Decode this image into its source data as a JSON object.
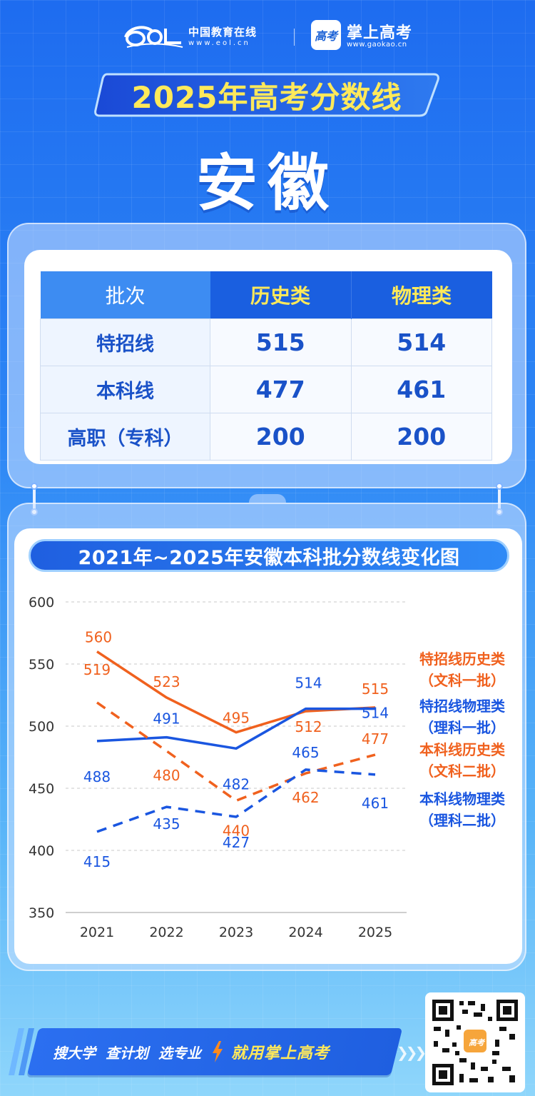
{
  "header": {
    "eol_name": "中国教育在线",
    "eol_url": "www.eol.cn",
    "gaokao_badge": "高考",
    "gaokao_name": "掌上高考",
    "gaokao_url": "www.gaokao.cn"
  },
  "title": "2025年高考分数线",
  "province": "安徽",
  "table": {
    "headers": [
      "批次",
      "历史类",
      "物理类"
    ],
    "rows": [
      {
        "batch": "特招线",
        "history": "515",
        "physics": "514"
      },
      {
        "batch": "本科线",
        "history": "477",
        "physics": "461"
      },
      {
        "batch": "高职（专科）",
        "history": "200",
        "physics": "200"
      }
    ]
  },
  "colors": {
    "orange": "#f0611e",
    "blue": "#1a56e0",
    "yellow": "#ffe95a"
  },
  "chart_data": {
    "type": "line",
    "title": "2021年~2025年安徽本科批分数线变化图",
    "x": [
      "2021",
      "2022",
      "2023",
      "2024",
      "2025"
    ],
    "yticks": [
      "600",
      "550",
      "500",
      "450",
      "400",
      "350"
    ],
    "ylim": [
      350,
      600
    ],
    "grid": true,
    "legend_position": "right",
    "series": [
      {
        "name_line1": "特招线历史类",
        "name_line2": "（文科一批）",
        "values": [
          560,
          523,
          495,
          512,
          515
        ],
        "labels": [
          "560",
          "523",
          "495",
          "512",
          "515"
        ],
        "color": "#f0611e",
        "style": "solid"
      },
      {
        "name_line1": "特招线物理类",
        "name_line2": "（理科一批）",
        "values": [
          488,
          491,
          482,
          514,
          514
        ],
        "labels": [
          "488",
          "491",
          "482",
          "514",
          "514"
        ],
        "color": "#1a56e0",
        "style": "solid"
      },
      {
        "name_line1": "本科线历史类",
        "name_line2": "（文科二批）",
        "values": [
          519,
          480,
          440,
          462,
          477
        ],
        "labels": [
          "519",
          "480",
          "440",
          "462",
          "477"
        ],
        "color": "#f0611e",
        "style": "dashed"
      },
      {
        "name_line1": "本科线物理类",
        "name_line2": "（理科二批）",
        "values": [
          415,
          435,
          427,
          465,
          461
        ],
        "labels": [
          "415",
          "435",
          "427",
          "465",
          "461"
        ],
        "color": "#1a56e0",
        "style": "dashed"
      }
    ]
  },
  "footer": {
    "items": [
      "搜大学",
      "查计划",
      "选专业"
    ],
    "cta": "就用掌上高考",
    "qr_badge": "高考"
  }
}
